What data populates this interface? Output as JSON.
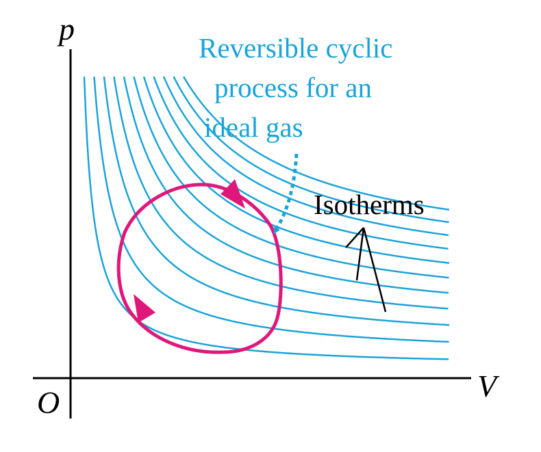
{
  "axes": {
    "y_label": "p",
    "x_label": "V",
    "origin_label": "O"
  },
  "annotations": {
    "cycle_label_lines": [
      "Reversible cyclic",
      "process for an",
      "ideal gas"
    ],
    "isotherms_label": "Isotherms"
  },
  "colors": {
    "isotherm": "#1aa3d9",
    "cycle": "#e0177a",
    "annotation_cyan": "#1aa3d9",
    "axis": "#000000"
  },
  "isotherm_count": 11,
  "cycle_direction": "clockwise"
}
